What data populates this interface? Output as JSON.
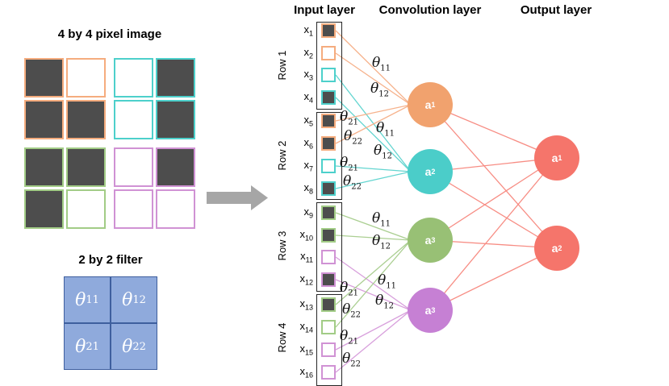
{
  "image_panel": {
    "title": "4 by 4 pixel image",
    "cells": [
      {
        "quadrant": "orange",
        "filled": true
      },
      {
        "quadrant": "orange",
        "filled": false
      },
      {
        "quadrant": "teal",
        "filled": false
      },
      {
        "quadrant": "teal",
        "filled": true
      },
      {
        "quadrant": "orange",
        "filled": true
      },
      {
        "quadrant": "orange",
        "filled": true
      },
      {
        "quadrant": "teal",
        "filled": false
      },
      {
        "quadrant": "teal",
        "filled": true
      },
      {
        "quadrant": "green",
        "filled": true
      },
      {
        "quadrant": "green",
        "filled": true
      },
      {
        "quadrant": "purple",
        "filled": false
      },
      {
        "quadrant": "purple",
        "filled": true
      },
      {
        "quadrant": "green",
        "filled": true
      },
      {
        "quadrant": "green",
        "filled": false
      },
      {
        "quadrant": "purple",
        "filled": false
      },
      {
        "quadrant": "purple",
        "filled": false
      }
    ]
  },
  "filter_panel": {
    "title": "2 by 2 filter",
    "cells": [
      {
        "base": "θ",
        "sub": "11"
      },
      {
        "base": "θ",
        "sub": "12"
      },
      {
        "base": "θ",
        "sub": "21"
      },
      {
        "base": "θ",
        "sub": "22"
      }
    ]
  },
  "network": {
    "headers": {
      "input": "Input layer",
      "conv": "Convolution layer",
      "output": "Output layer"
    },
    "row_groups": [
      {
        "label": "Row 1"
      },
      {
        "label": "Row 2"
      },
      {
        "label": "Row 3"
      },
      {
        "label": "Row 4"
      }
    ],
    "inputs": [
      {
        "base": "x",
        "sub": "1",
        "quadrant": "orange",
        "filled": true
      },
      {
        "base": "x",
        "sub": "2",
        "quadrant": "orange",
        "filled": false
      },
      {
        "base": "x",
        "sub": "3",
        "quadrant": "teal",
        "filled": false
      },
      {
        "base": "x",
        "sub": "4",
        "quadrant": "teal",
        "filled": true
      },
      {
        "base": "x",
        "sub": "5",
        "quadrant": "orange",
        "filled": true
      },
      {
        "base": "x",
        "sub": "6",
        "quadrant": "orange",
        "filled": true
      },
      {
        "base": "x",
        "sub": "7",
        "quadrant": "teal",
        "filled": false
      },
      {
        "base": "x",
        "sub": "8",
        "quadrant": "teal",
        "filled": true
      },
      {
        "base": "x",
        "sub": "9",
        "quadrant": "green",
        "filled": true
      },
      {
        "base": "x",
        "sub": "10",
        "quadrant": "green",
        "filled": true
      },
      {
        "base": "x",
        "sub": "11",
        "quadrant": "purple",
        "filled": false
      },
      {
        "base": "x",
        "sub": "12",
        "quadrant": "purple",
        "filled": true
      },
      {
        "base": "x",
        "sub": "13",
        "quadrant": "green",
        "filled": true
      },
      {
        "base": "x",
        "sub": "14",
        "quadrant": "green",
        "filled": false
      },
      {
        "base": "x",
        "sub": "15",
        "quadrant": "purple",
        "filled": false
      },
      {
        "base": "x",
        "sub": "16",
        "quadrant": "purple",
        "filled": false
      }
    ],
    "conv_nodes": [
      {
        "base": "a",
        "sub": "1",
        "quadrant": "orange"
      },
      {
        "base": "a",
        "sub": "2",
        "quadrant": "teal"
      },
      {
        "base": "a",
        "sub": "3",
        "quadrant": "green"
      },
      {
        "base": "a",
        "sub": "3",
        "quadrant": "purple"
      }
    ],
    "output_nodes": [
      {
        "base": "a",
        "sub": "1"
      },
      {
        "base": "a",
        "sub": "2"
      }
    ],
    "edge_labels": {
      "orange": [
        {
          "base": "θ",
          "sub": "11"
        },
        {
          "base": "θ",
          "sub": "12"
        },
        {
          "base": "θ",
          "sub": "21"
        },
        {
          "base": "θ",
          "sub": "22"
        }
      ],
      "teal": [
        {
          "base": "θ",
          "sub": "11"
        },
        {
          "base": "θ",
          "sub": "12"
        },
        {
          "base": "θ",
          "sub": "21"
        },
        {
          "base": "θ",
          "sub": "22"
        }
      ],
      "green": [
        {
          "base": "θ",
          "sub": "11"
        },
        {
          "base": "θ",
          "sub": "12"
        },
        {
          "base": "θ",
          "sub": "21"
        },
        {
          "base": "θ",
          "sub": "22"
        }
      ],
      "purple": [
        {
          "base": "θ",
          "sub": "11"
        },
        {
          "base": "θ",
          "sub": "12"
        },
        {
          "base": "θ",
          "sub": "21"
        },
        {
          "base": "θ",
          "sub": "22"
        }
      ]
    }
  },
  "colors": {
    "dark_fill": "#4D4D4D",
    "quadrants": {
      "orange": {
        "border": "#F5AC7E",
        "line": "#F6B28C",
        "node": "#F1A26E"
      },
      "teal": {
        "border": "#4DD0CB",
        "line": "#63D5D0",
        "node": "#4BCDC9"
      },
      "green": {
        "border": "#A2CC86",
        "line": "#ABCF92",
        "node": "#98C075"
      },
      "purple": {
        "border": "#D092D4",
        "line": "#D8A0DC",
        "node": "#C680D4"
      }
    },
    "output_node": "#F5756B",
    "output_line": "#F78D84",
    "filter_fill": "#8FAADC",
    "filter_border": "#3E5F9E",
    "arrow": "#A6A6A6",
    "box_border": "#262626",
    "text": "#000000"
  }
}
